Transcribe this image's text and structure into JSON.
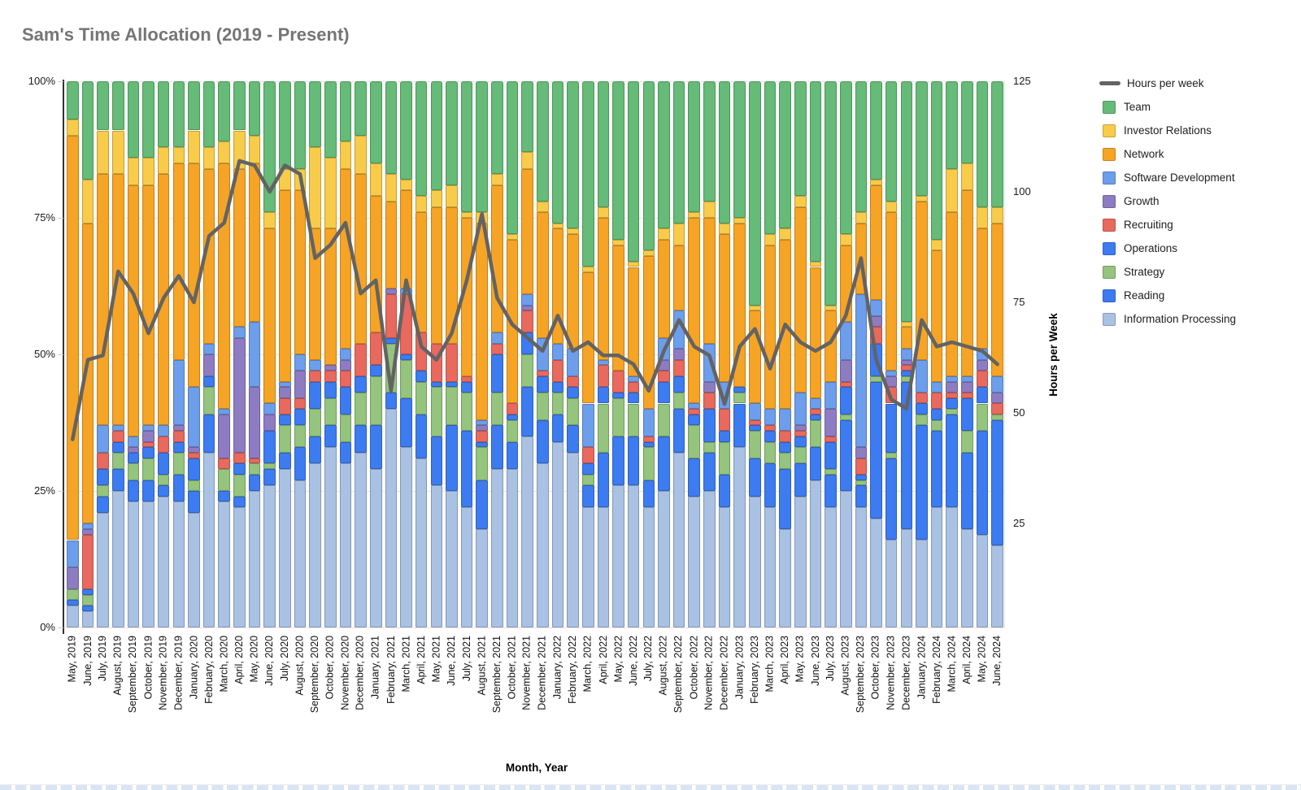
{
  "title": "Sam's Time Allocation (2019 - Present)",
  "x_axis_title": "Month, Year",
  "right_axis_title": "Hours per Week",
  "colors": {
    "line": "#636363",
    "Team": "#65BB77",
    "Investor Relations": "#F8CB4A",
    "Network": "#F6A426",
    "Software Development": "#6D9EEB",
    "Growth": "#8E7CC3",
    "Recruiting": "#E8695E",
    "Operations": "#3D7BF0",
    "Strategy": "#94C47D",
    "Reading": "#3D7BF0",
    "Information Processing": "#A9C2E3"
  },
  "left_axis_ticks": [
    {
      "label": "0%",
      "value": 0
    },
    {
      "label": "25%",
      "value": 25
    },
    {
      "label": "50%",
      "value": 50
    },
    {
      "label": "75%",
      "value": 75
    },
    {
      "label": "100%",
      "value": 100
    }
  ],
  "right_axis_ticks": [
    {
      "label": "25",
      "value": 25
    },
    {
      "label": "50",
      "value": 50
    },
    {
      "label": "75",
      "value": 75
    },
    {
      "label": "100",
      "value": 100
    },
    {
      "label": "125",
      "value": 125
    }
  ],
  "chart_data": {
    "type": "combo-100pct-stacked-bar-with-line",
    "grid": true,
    "legend_position": "right",
    "left_ylim": [
      0,
      100
    ],
    "right_ylim": [
      0,
      125
    ],
    "categories": [
      "May, 2019",
      "June, 2019",
      "July, 2019",
      "August, 2019",
      "September, 2019",
      "October, 2019",
      "November, 2019",
      "December, 2019",
      "January, 2020",
      "February, 2020",
      "March, 2020",
      "April, 2020",
      "May, 2020",
      "June, 2020",
      "July, 2020",
      "August, 2020",
      "September, 2020",
      "October, 2020",
      "November, 2020",
      "December, 2020",
      "January, 2021",
      "February, 2021",
      "March, 2021",
      "April, 2021",
      "May, 2021",
      "June, 2021",
      "July, 2021",
      "August, 2021",
      "September, 2021",
      "October, 2021",
      "November, 2021",
      "December, 2021",
      "January, 2022",
      "February, 2022",
      "March, 2022",
      "April, 2022",
      "May, 2022",
      "June, 2022",
      "July, 2022",
      "August, 2022",
      "September, 2022",
      "October, 2022",
      "November, 2022",
      "December, 2022",
      "January, 2023",
      "February, 2023",
      "March, 2023",
      "April, 2023",
      "May, 2023",
      "June, 2023",
      "July, 2023",
      "August, 2023",
      "September, 2023",
      "October, 2023",
      "November, 2023",
      "December, 2023",
      "January, 2024",
      "February, 2024",
      "March, 2024",
      "April, 2024",
      "May, 2024",
      "June, 2024"
    ],
    "line_series": {
      "name": "Hours per week",
      "axis": "right",
      "values": [
        44,
        62,
        63,
        82,
        77,
        68,
        76,
        81,
        75,
        90,
        93,
        107,
        106,
        100,
        106,
        104,
        85,
        88,
        93,
        77,
        80,
        55,
        80,
        65,
        62,
        68,
        80,
        95,
        76,
        70,
        67,
        64,
        72,
        64,
        66,
        63,
        63,
        61,
        55,
        64,
        71,
        65,
        63,
        52,
        65,
        69,
        60,
        70,
        66,
        64,
        66,
        72,
        85,
        62,
        53,
        51,
        71,
        65,
        66,
        65,
        64,
        61
      ]
    },
    "bar_series": [
      {
        "name": "Team",
        "values": [
          7,
          18,
          9,
          9,
          14,
          14,
          12,
          12,
          9,
          12,
          11,
          9,
          10,
          24,
          16,
          16,
          12,
          14,
          11,
          10,
          15,
          17,
          18,
          21,
          20,
          19,
          24,
          24,
          17,
          28,
          13,
          22,
          26,
          27,
          34,
          23,
          29,
          33,
          31,
          27,
          26,
          24,
          22,
          26,
          25,
          41,
          28,
          27,
          21,
          33,
          41,
          28,
          24,
          18,
          22,
          44,
          21,
          29,
          16,
          15,
          23,
          23
        ]
      },
      {
        "name": "Investor Relations",
        "values": [
          3,
          8,
          8,
          8,
          5,
          5,
          5,
          3,
          6,
          4,
          4,
          7,
          5,
          3,
          4,
          4,
          15,
          13,
          5,
          7,
          6,
          5,
          2,
          3,
          3,
          4,
          1,
          2,
          2,
          1,
          3,
          2,
          1,
          1,
          1,
          2,
          1,
          1,
          1,
          2,
          4,
          1,
          3,
          2,
          1,
          1,
          2,
          2,
          2,
          1,
          1,
          2,
          2,
          1,
          2,
          1,
          1,
          2,
          8,
          5,
          4,
          3
        ]
      },
      {
        "name": "Network",
        "values": [
          74,
          55,
          46,
          46,
          46,
          44,
          46,
          36,
          41,
          32,
          45,
          29,
          29,
          32,
          35,
          30,
          24,
          25,
          33,
          31,
          25,
          16,
          18,
          22,
          25,
          25,
          29,
          36,
          27,
          30,
          23,
          23,
          21,
          21,
          24,
          26,
          23,
          20,
          28,
          18,
          12,
          34,
          23,
          27,
          30,
          17,
          30,
          31,
          34,
          24,
          13,
          14,
          13,
          21,
          29,
          4,
          29,
          24,
          30,
          34,
          22,
          28
        ]
      },
      {
        "name": "Software Development",
        "values": [
          5,
          1,
          5,
          1,
          2,
          1,
          2,
          12,
          11,
          2,
          1,
          2,
          12,
          2,
          1,
          3,
          2,
          0,
          2,
          0,
          0,
          0,
          1,
          0,
          0,
          0,
          0,
          1,
          2,
          0,
          2,
          6,
          3,
          5,
          8,
          1,
          0,
          1,
          5,
          4,
          7,
          1,
          7,
          5,
          0,
          3,
          3,
          4,
          6,
          2,
          5,
          7,
          28,
          3,
          1,
          2,
          6,
          2,
          1,
          1,
          2,
          3
        ]
      },
      {
        "name": "Growth",
        "values": [
          4,
          1,
          0,
          0,
          1,
          2,
          0,
          1,
          1,
          4,
          8,
          21,
          13,
          3,
          2,
          5,
          0,
          1,
          2,
          0,
          0,
          1,
          0,
          0,
          0,
          0,
          0,
          1,
          0,
          0,
          1,
          0,
          0,
          0,
          0,
          0,
          0,
          0,
          0,
          2,
          2,
          0,
          2,
          0,
          0,
          0,
          0,
          0,
          1,
          0,
          5,
          4,
          2,
          2,
          2,
          1,
          0,
          0,
          2,
          2,
          2,
          2
        ]
      },
      {
        "name": "Recruiting",
        "values": [
          0,
          10,
          3,
          2,
          0,
          1,
          3,
          2,
          1,
          0,
          2,
          2,
          1,
          0,
          3,
          2,
          2,
          2,
          3,
          6,
          6,
          8,
          11,
          7,
          7,
          7,
          1,
          2,
          2,
          2,
          4,
          1,
          4,
          2,
          3,
          4,
          4,
          2,
          1,
          2,
          3,
          1,
          3,
          4,
          0,
          1,
          1,
          2,
          1,
          1,
          1,
          1,
          3,
          3,
          3,
          1,
          2,
          3,
          1,
          1,
          3,
          2
        ]
      },
      {
        "name": "Operations",
        "values": [
          0,
          1,
          3,
          2,
          2,
          2,
          4,
          2,
          4,
          2,
          0,
          2,
          0,
          6,
          2,
          3,
          5,
          3,
          5,
          3,
          2,
          1,
          1,
          2,
          1,
          1,
          2,
          1,
          7,
          1,
          4,
          3,
          2,
          2,
          2,
          3,
          1,
          2,
          1,
          4,
          3,
          2,
          6,
          2,
          1,
          1,
          2,
          2,
          2,
          1,
          5,
          5,
          1,
          6,
          9,
          1,
          2,
          2,
          2,
          6,
          3,
          0
        ]
      },
      {
        "name": "Strategy",
        "values": [
          2,
          2,
          2,
          3,
          3,
          4,
          2,
          4,
          2,
          5,
          4,
          4,
          2,
          1,
          5,
          4,
          5,
          5,
          5,
          6,
          9,
          9,
          7,
          6,
          9,
          7,
          7,
          6,
          6,
          4,
          6,
          5,
          4,
          5,
          2,
          9,
          7,
          6,
          6,
          6,
          3,
          6,
          2,
          6,
          2,
          5,
          4,
          3,
          3,
          5,
          1,
          1,
          1,
          1,
          1,
          1,
          2,
          2,
          1,
          4,
          5,
          1
        ]
      },
      {
        "name": "Reading",
        "values": [
          1,
          1,
          3,
          4,
          4,
          4,
          2,
          5,
          4,
          7,
          2,
          2,
          3,
          3,
          3,
          6,
          5,
          4,
          4,
          5,
          8,
          3,
          9,
          8,
          9,
          12,
          14,
          9,
          8,
          5,
          9,
          8,
          5,
          5,
          4,
          10,
          9,
          9,
          5,
          10,
          8,
          7,
          7,
          6,
          8,
          7,
          8,
          11,
          6,
          6,
          6,
          13,
          4,
          25,
          15,
          27,
          21,
          14,
          17,
          14,
          19,
          23
        ]
      },
      {
        "name": "Information Processing",
        "values": [
          4,
          3,
          21,
          25,
          23,
          23,
          24,
          23,
          21,
          32,
          23,
          22,
          25,
          26,
          29,
          27,
          30,
          33,
          30,
          32,
          29,
          40,
          33,
          31,
          26,
          25,
          22,
          18,
          29,
          29,
          35,
          30,
          34,
          32,
          22,
          22,
          26,
          26,
          22,
          25,
          32,
          24,
          25,
          22,
          33,
          24,
          22,
          18,
          24,
          27,
          22,
          25,
          22,
          20,
          16,
          18,
          16,
          22,
          22,
          18,
          17,
          15
        ]
      }
    ]
  }
}
